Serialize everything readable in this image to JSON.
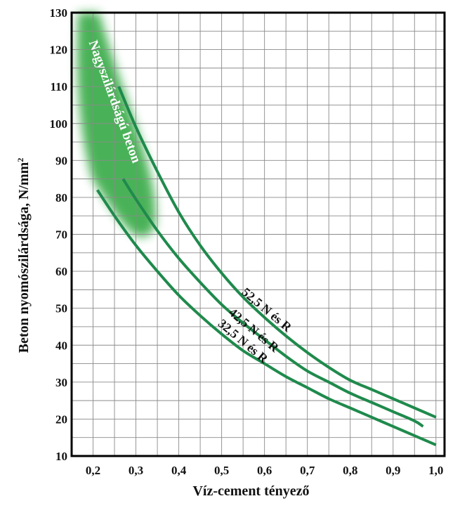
{
  "chart_data": {
    "type": "line",
    "title": "",
    "xlabel": "Víz-cement tényező",
    "ylabel": "Beton nyomószilárdsága, N/mm",
    "ylabel_superscript": "2",
    "xlim": [
      0.15,
      1.02
    ],
    "ylim": [
      10,
      130
    ],
    "x_ticks": [
      0.2,
      0.3,
      0.4,
      0.5,
      0.6,
      0.7,
      0.8,
      0.9,
      1.0
    ],
    "x_tick_labels": [
      "0,2",
      "0,3",
      "0,4",
      "0,5",
      "0,6",
      "0,7",
      "0,8",
      "0,9",
      "1,0"
    ],
    "y_ticks": [
      10,
      20,
      30,
      40,
      50,
      60,
      70,
      80,
      90,
      100,
      110,
      120,
      130
    ],
    "y_tick_labels": [
      "10",
      "20",
      "30",
      "40",
      "50",
      "60",
      "70",
      "80",
      "90",
      "100",
      "110",
      "120",
      "130"
    ],
    "grid": true,
    "colors": {
      "series": "#1f8a4c",
      "zone": "#2aa53a"
    },
    "series": [
      {
        "name": "52,5 N és R",
        "x": [
          0.26,
          0.3,
          0.35,
          0.4,
          0.45,
          0.5,
          0.55,
          0.6,
          0.65,
          0.7,
          0.75,
          0.8,
          0.85,
          0.9,
          0.95,
          1.0
        ],
        "y": [
          110,
          99,
          87,
          76,
          67,
          59.5,
          53,
          47.5,
          42.5,
          38,
          34,
          30.5,
          28,
          25.5,
          23,
          20.5
        ]
      },
      {
        "name": "42,5 N és R",
        "x": [
          0.27,
          0.3,
          0.35,
          0.4,
          0.45,
          0.5,
          0.55,
          0.6,
          0.65,
          0.7,
          0.75,
          0.8,
          0.85,
          0.9,
          0.95,
          0.97
        ],
        "y": [
          85,
          79.5,
          71,
          63.5,
          57,
          51,
          46,
          41.5,
          37,
          33,
          30,
          27,
          24.5,
          22,
          19.5,
          18
        ]
      },
      {
        "name": "32,5 N és R",
        "x": [
          0.21,
          0.25,
          0.3,
          0.35,
          0.4,
          0.45,
          0.5,
          0.55,
          0.6,
          0.65,
          0.7,
          0.75,
          0.8,
          0.85,
          0.9,
          0.95,
          1.0
        ],
        "y": [
          82,
          75,
          67,
          60,
          53.5,
          48,
          43,
          38.5,
          35,
          31.5,
          28.5,
          25.5,
          23,
          20.5,
          18,
          15.5,
          13
        ]
      }
    ],
    "annotations": [
      {
        "text": "Nagyszilárdságú beton",
        "x": 0.19,
        "y": 122
      }
    ],
    "highlight_zone": {
      "label": "Nagyszilárdságú beton",
      "x_range": [
        0.165,
        0.36
      ],
      "y_range": [
        68,
        130
      ]
    }
  }
}
